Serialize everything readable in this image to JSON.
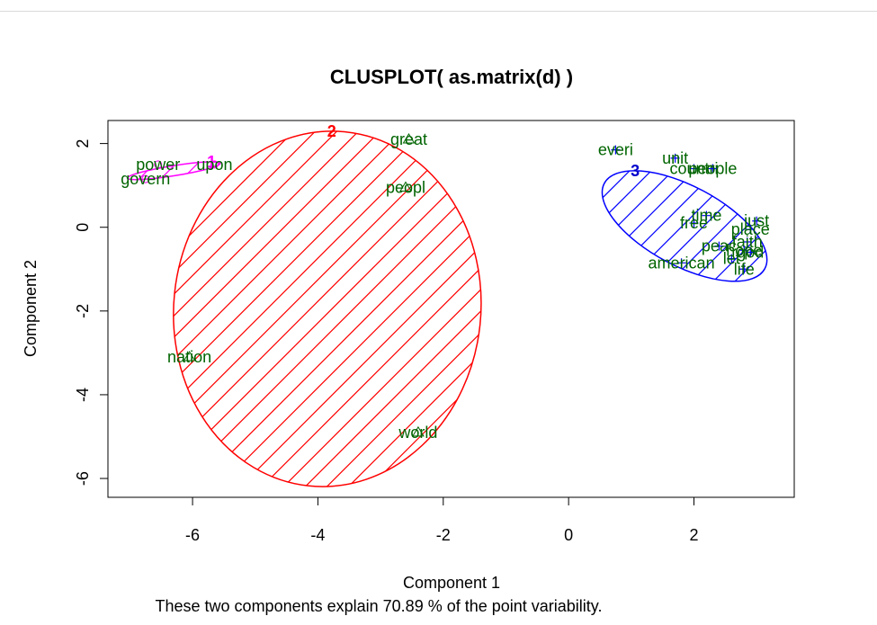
{
  "chart_data": {
    "type": "scatter",
    "subtype": "clusplot",
    "title": "CLUSPLOT( as.matrix(d) )",
    "xlabel": "Component 1",
    "ylabel": "Component 2",
    "subtitle": "These two components explain 70.89 % of the point variability.",
    "xlim": [
      -7.35,
      3.6
    ],
    "ylim": [
      -6.45,
      2.55
    ],
    "x_ticks": [
      -6,
      -4,
      -2,
      0,
      2
    ],
    "y_ticks": [
      -6,
      -4,
      -2,
      0,
      2
    ],
    "grid": false,
    "clusters": [
      {
        "id": "1",
        "color": "#ff00ff",
        "label_color": "#ff00ff",
        "ellipse": {
          "cx": -6.3,
          "cy": 1.35,
          "rx": 0.75,
          "ry": 0.12,
          "angle": 9
        },
        "shading": "hatch"
      },
      {
        "id": "2",
        "color": "#ff0000",
        "label_color": "#ff0000",
        "ellipse": {
          "cx": -3.85,
          "cy": -1.95,
          "rx": 2.45,
          "ry": 4.25,
          "angle": -6
        },
        "shading": "hatch"
      },
      {
        "id": "3",
        "color": "#0000ff",
        "label_color": "#0000cc",
        "ellipse": {
          "cx": 1.85,
          "cy": 0.03,
          "rx": 1.45,
          "ry": 0.95,
          "angle": -28
        },
        "shading": "hatch"
      }
    ],
    "points": [
      {
        "label": "power",
        "x": -6.55,
        "y": 1.5,
        "marker": "circle",
        "cluster": "1"
      },
      {
        "label": "upon",
        "x": -5.65,
        "y": 1.5,
        "marker": "circle",
        "cluster": "1"
      },
      {
        "label": "govern",
        "x": -6.75,
        "y": 1.15,
        "marker": "circle",
        "cluster": "1"
      },
      {
        "label": "great",
        "x": -2.55,
        "y": 2.1,
        "marker": "triangle",
        "cluster": "2"
      },
      {
        "label": "peopl",
        "x": -2.6,
        "y": 0.95,
        "marker": "triangle",
        "cluster": "2"
      },
      {
        "label": "nation",
        "x": -6.05,
        "y": -3.1,
        "marker": "triangle",
        "cluster": "2"
      },
      {
        "label": "world",
        "x": -2.4,
        "y": -4.9,
        "marker": "triangle",
        "cluster": "2"
      },
      {
        "label": "everi",
        "x": 0.75,
        "y": 1.85,
        "marker": "cross",
        "cluster": "3"
      },
      {
        "label": "unit",
        "x": 1.7,
        "y": 1.65,
        "marker": "cross",
        "cluster": "3"
      },
      {
        "label": "countri",
        "x": 2.0,
        "y": 1.4,
        "marker": "cross",
        "cluster": "3"
      },
      {
        "label": "people",
        "x": 2.3,
        "y": 1.4,
        "marker": "cross",
        "cluster": "3"
      },
      {
        "label": "time",
        "x": 2.2,
        "y": 0.28,
        "marker": "cross",
        "cluster": "3"
      },
      {
        "label": "free",
        "x": 2.0,
        "y": 0.1,
        "marker": "cross",
        "cluster": "3"
      },
      {
        "label": "just",
        "x": 3.0,
        "y": 0.15,
        "marker": "cross",
        "cluster": "3"
      },
      {
        "label": "place",
        "x": 2.9,
        "y": -0.05,
        "marker": "cross",
        "cluster": "3"
      },
      {
        "label": "faith",
        "x": 2.85,
        "y": -0.35,
        "marker": "cross",
        "cluster": "3"
      },
      {
        "label": "peac",
        "x": 2.4,
        "y": -0.45,
        "marker": "cross",
        "cluster": "3"
      },
      {
        "label": "hope",
        "x": 2.8,
        "y": -0.55,
        "marker": "cross",
        "cluster": "3"
      },
      {
        "label": "god",
        "x": 2.9,
        "y": -0.6,
        "marker": "cross",
        "cluster": "3"
      },
      {
        "label": "american",
        "x": 1.8,
        "y": -0.85,
        "marker": "cross",
        "cluster": "3"
      },
      {
        "label": "life",
        "x": 2.8,
        "y": -1.0,
        "marker": "cross",
        "cluster": "3"
      },
      {
        "label": "let",
        "x": 2.6,
        "y": -0.75,
        "marker": "cross",
        "cluster": "3"
      }
    ],
    "point_label_color": "#006400"
  }
}
